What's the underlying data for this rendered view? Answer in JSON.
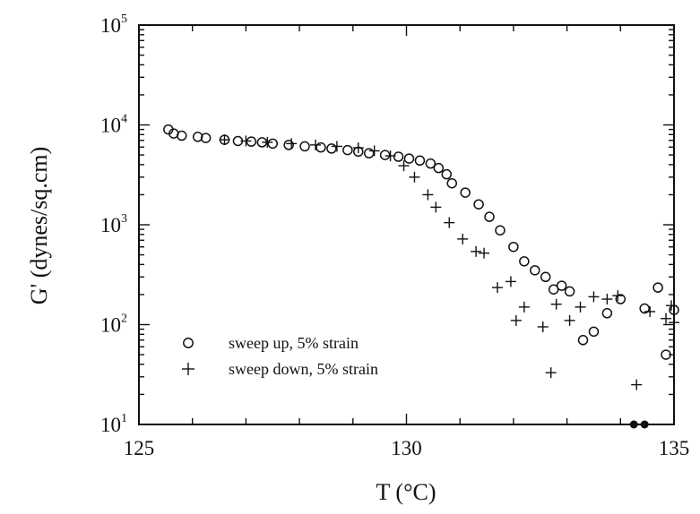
{
  "chart_data": {
    "type": "scatter",
    "xlabel": "T (°C)",
    "ylabel": "G' (dynes/sq.cm)",
    "xlim": [
      125,
      135
    ],
    "ylim": [
      10,
      100000
    ],
    "yscale": "log",
    "x_ticks": [
      "125",
      "130",
      "135"
    ],
    "x_tick_values": [
      125,
      130,
      135
    ],
    "y_ticks": [
      {
        "base": "10",
        "exp": "1",
        "value": 10
      },
      {
        "base": "10",
        "exp": "2",
        "value": 100
      },
      {
        "base": "10",
        "exp": "3",
        "value": 1000
      },
      {
        "base": "10",
        "exp": "4",
        "value": 10000
      },
      {
        "base": "10",
        "exp": "5",
        "value": 100000
      }
    ],
    "grid": false,
    "legend_position": "bottom-left",
    "series": [
      {
        "name": "sweep up, 5% strain",
        "marker": "circle",
        "points": [
          [
            125.55,
            9000
          ],
          [
            125.65,
            8200
          ],
          [
            125.8,
            7800
          ],
          [
            126.1,
            7600
          ],
          [
            126.25,
            7400
          ],
          [
            126.6,
            7100
          ],
          [
            126.85,
            6900
          ],
          [
            127.1,
            6800
          ],
          [
            127.3,
            6700
          ],
          [
            127.5,
            6500
          ],
          [
            127.8,
            6300
          ],
          [
            128.1,
            6100
          ],
          [
            128.4,
            5950
          ],
          [
            128.6,
            5800
          ],
          [
            128.9,
            5600
          ],
          [
            129.1,
            5400
          ],
          [
            129.3,
            5200
          ],
          [
            129.6,
            5000
          ],
          [
            129.85,
            4800
          ],
          [
            130.05,
            4600
          ],
          [
            130.25,
            4400
          ],
          [
            130.45,
            4100
          ],
          [
            130.6,
            3700
          ],
          [
            130.75,
            3200
          ],
          [
            130.85,
            2600
          ],
          [
            131.1,
            2100
          ],
          [
            131.35,
            1600
          ],
          [
            131.55,
            1200
          ],
          [
            131.75,
            880
          ],
          [
            132.0,
            600
          ],
          [
            132.2,
            430
          ],
          [
            132.4,
            350
          ],
          [
            132.6,
            300
          ],
          [
            132.75,
            225
          ],
          [
            132.9,
            245
          ],
          [
            133.3,
            70
          ],
          [
            133.05,
            215
          ],
          [
            133.5,
            85
          ],
          [
            133.75,
            130
          ],
          [
            134.0,
            180
          ],
          [
            134.45,
            145
          ],
          [
            134.7,
            235
          ],
          [
            134.85,
            50
          ],
          [
            135.0,
            140
          ]
        ]
      },
      {
        "name": "sweep down, 5% strain",
        "marker": "plus",
        "points": [
          [
            126.6,
            7100
          ],
          [
            127.0,
            6900
          ],
          [
            127.4,
            6700
          ],
          [
            127.85,
            6500
          ],
          [
            128.3,
            6300
          ],
          [
            128.7,
            6100
          ],
          [
            129.1,
            5900
          ],
          [
            129.4,
            5500
          ],
          [
            129.7,
            4900
          ],
          [
            129.95,
            3900
          ],
          [
            130.15,
            3000
          ],
          [
            130.4,
            2000
          ],
          [
            130.55,
            1500
          ],
          [
            130.8,
            1050
          ],
          [
            131.05,
            720
          ],
          [
            131.3,
            540
          ],
          [
            131.45,
            520
          ],
          [
            131.7,
            235
          ],
          [
            131.95,
            270
          ],
          [
            132.05,
            110
          ],
          [
            132.2,
            150
          ],
          [
            132.55,
            95
          ],
          [
            132.7,
            33
          ],
          [
            132.8,
            160
          ],
          [
            133.05,
            110
          ],
          [
            133.25,
            150
          ],
          [
            133.5,
            190
          ],
          [
            133.75,
            180
          ],
          [
            133.95,
            195
          ],
          [
            134.3,
            25
          ],
          [
            134.55,
            135
          ],
          [
            134.85,
            115
          ],
          [
            134.95,
            155
          ],
          [
            135.05,
            105
          ]
        ]
      },
      {
        "name": "",
        "marker": "filled-circle",
        "points": [
          [
            134.25,
            10
          ],
          [
            134.45,
            10
          ]
        ]
      }
    ]
  }
}
